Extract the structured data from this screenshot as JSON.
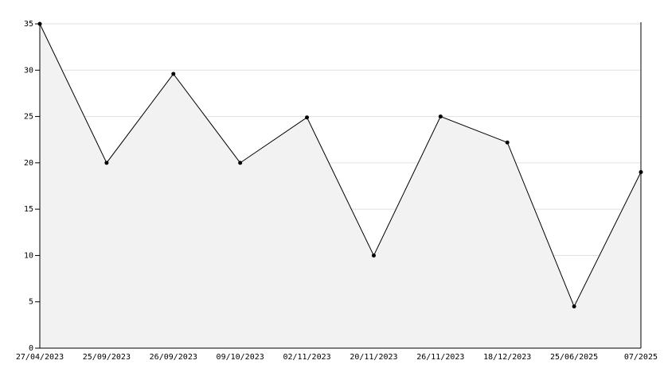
{
  "chart_data": {
    "type": "area",
    "categories": [
      "27/04/2023",
      "25/09/2023",
      "26/09/2023",
      "09/10/2023",
      "02/11/2023",
      "20/11/2023",
      "26/11/2023",
      "18/12/2023",
      "25/06/2025",
      "07/2025"
    ],
    "values": [
      35,
      20,
      29.6,
      20,
      24.9,
      10,
      25,
      22.2,
      4.5,
      19
    ],
    "color": "#000000",
    "fill": "#f2f2f2",
    "ylim": [
      0,
      35
    ],
    "yticks": [
      0,
      5,
      10,
      15,
      20,
      25,
      30,
      35
    ],
    "grid": true
  }
}
